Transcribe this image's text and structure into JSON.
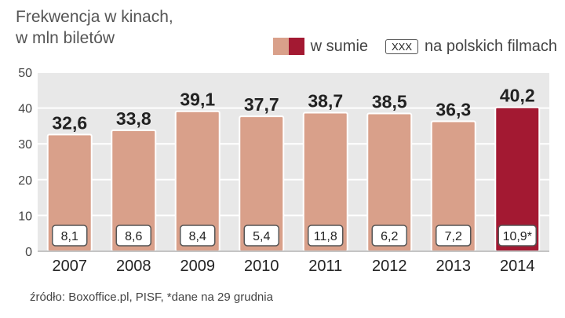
{
  "chart_data": {
    "type": "bar",
    "title": "Frekwencja w kinach,",
    "subtitle": "w mln biletów",
    "categories": [
      "2007",
      "2008",
      "2009",
      "2010",
      "2011",
      "2012",
      "2013",
      "2014"
    ],
    "series": [
      {
        "name": "w sumie",
        "values": [
          32.6,
          33.8,
          39.1,
          37.7,
          38.7,
          38.5,
          36.3,
          40.2
        ],
        "labels": [
          "32,6",
          "33,8",
          "39,1",
          "37,7",
          "38,7",
          "38,5",
          "36,3",
          "40,2"
        ]
      },
      {
        "name": "na polskich filmach",
        "values": [
          8.1,
          8.6,
          8.4,
          5.4,
          11.8,
          6.2,
          7.2,
          10.9
        ],
        "labels": [
          "8,1",
          "8,6",
          "8,4",
          "5,4",
          "11,8",
          "6,2",
          "7,2",
          "10,9*"
        ]
      }
    ],
    "ylim": [
      0,
      50
    ],
    "yticks": [
      "0",
      "10",
      "20",
      "30",
      "40",
      "50"
    ],
    "grid": true,
    "legend_position": "top-right",
    "colors": {
      "bar": "#d9a08a",
      "highlight": "#a31932",
      "background": "#e8e8e8"
    }
  },
  "legend": {
    "total_label": "w sumie",
    "polish_marker": "XXX",
    "polish_label": "na polskich filmach"
  },
  "source": "źródło: Boxoffice.pl, PISF, *dane na 29 grudnia"
}
